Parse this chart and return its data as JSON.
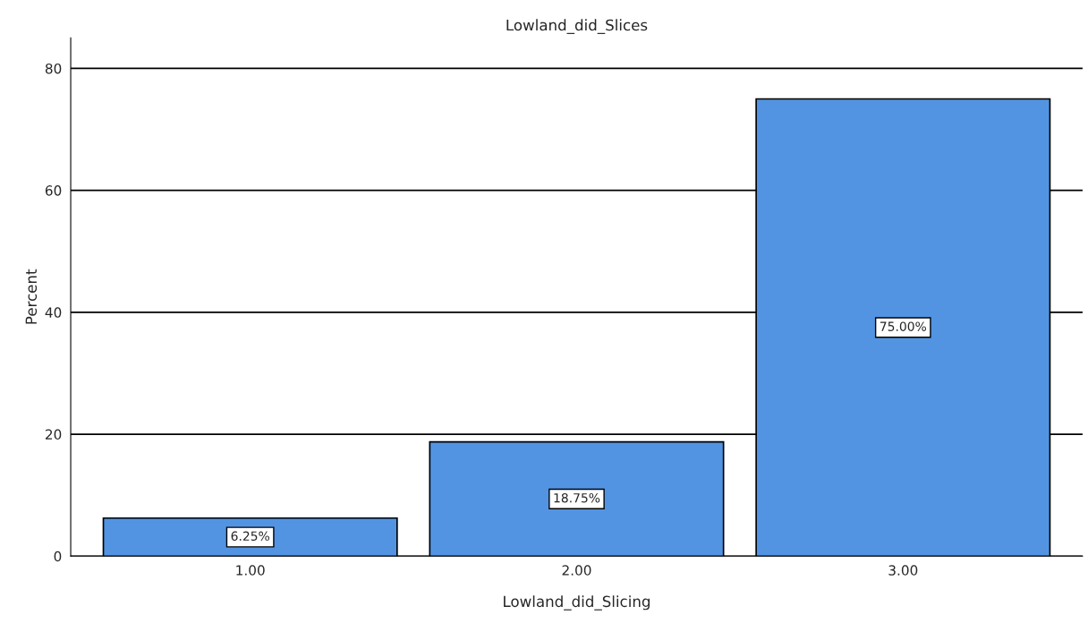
{
  "chart_data": {
    "type": "bar",
    "title": "Lowland_did_Slices",
    "xlabel": "Lowland_did_Slicing",
    "ylabel": "Percent",
    "categories": [
      "1.00",
      "2.00",
      "3.00"
    ],
    "values": [
      6.25,
      18.75,
      75.0
    ],
    "color": "#5294e2",
    "value_labels": [
      "6.25%",
      "18.75%",
      "75.00%"
    ],
    "ylim": [
      0,
      85
    ],
    "yticks": [
      0,
      20,
      40,
      60,
      80
    ],
    "grid": "y"
  }
}
